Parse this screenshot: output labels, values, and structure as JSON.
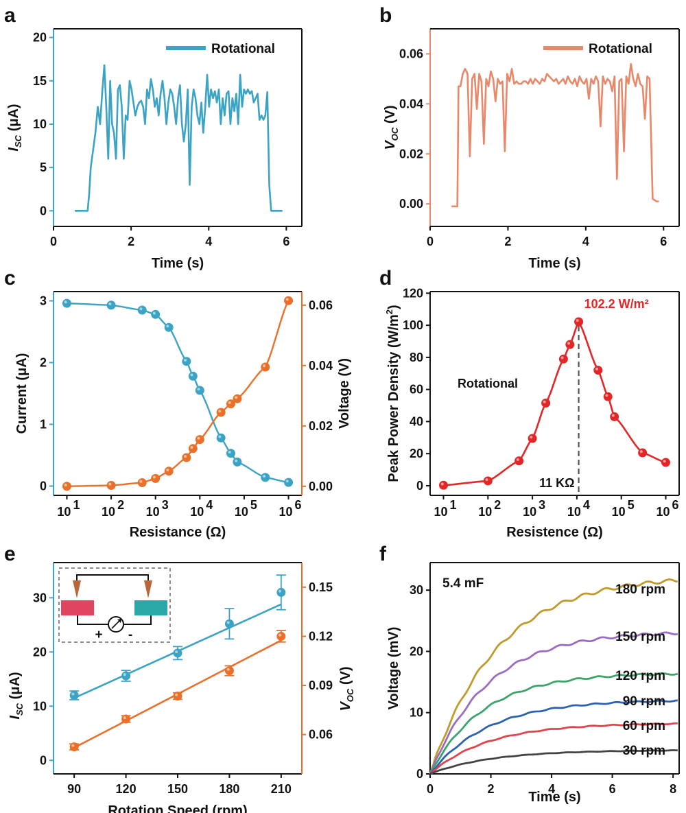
{
  "colors": {
    "blue": "#3ba3c3",
    "salmon": "#e8886a",
    "orange": "#e8702a",
    "red": "#e32626",
    "black": "#111111",
    "gray": "#555555"
  },
  "panels": [
    {
      "letter": "a",
      "chart_data": {
        "type": "line",
        "xlabel": "Time (s)",
        "ylabel_main": "I",
        "ylabel_sub": "SC",
        "ylabel_unit": " (μA)",
        "xlim": [
          0,
          6.4
        ],
        "ylim": [
          -1.8,
          21
        ],
        "xticks": [
          0,
          2,
          4,
          6
        ],
        "yticks": [
          0,
          5,
          10,
          15,
          20
        ],
        "legend": "top-right",
        "series": [
          {
            "name": "Rotational",
            "color": "#3ba3c3",
            "x": [
              0.55,
              0.88,
              0.92,
              0.96,
              1.02,
              1.08,
              1.14,
              1.2,
              1.26,
              1.31,
              1.36,
              1.41,
              1.46,
              1.51,
              1.56,
              1.61,
              1.66,
              1.71,
              1.76,
              1.81,
              1.86,
              1.91,
              1.96,
              2.01,
              2.06,
              2.11,
              2.16,
              2.21,
              2.26,
              2.31,
              2.36,
              2.41,
              2.46,
              2.51,
              2.56,
              2.61,
              2.66,
              2.71,
              2.76,
              2.81,
              2.86,
              2.91,
              2.96,
              3.01,
              3.06,
              3.11,
              3.16,
              3.21,
              3.26,
              3.31,
              3.36,
              3.41,
              3.46,
              3.51,
              3.56,
              3.61,
              3.66,
              3.71,
              3.76,
              3.81,
              3.86,
              3.91,
              3.96,
              4.01,
              4.06,
              4.11,
              4.16,
              4.21,
              4.26,
              4.31,
              4.36,
              4.41,
              4.46,
              4.51,
              4.56,
              4.61,
              4.66,
              4.71,
              4.76,
              4.81,
              4.86,
              4.91,
              4.96,
              5.01,
              5.06,
              5.11,
              5.16,
              5.21,
              5.26,
              5.31,
              5.36,
              5.41,
              5.46,
              5.51,
              5.56,
              5.61,
              5.66,
              5.71,
              5.76,
              5.9
            ],
            "y": [
              0,
              0,
              2,
              5,
              7,
              9,
              12,
              10,
              14,
              16.8,
              12,
              6,
              15,
              10,
              9,
              6,
              14,
              14.5,
              12,
              6,
              11,
              10.5,
              15,
              14,
              12.5,
              11,
              12,
              12.5,
              12.7,
              12,
              10,
              14,
              13,
              15.2,
              14,
              12,
              13,
              11,
              13.5,
              15,
              13,
              10,
              12.5,
              14,
              13.5,
              12,
              10,
              13,
              14.5,
              10,
              8,
              10,
              14,
              3,
              12,
              14,
              13,
              11,
              10,
              12.5,
              9,
              12,
              15.7,
              12,
              14,
              13,
              13.8,
              12.5,
              14,
              10,
              13,
              11,
              13.5,
              13.8,
              10,
              13,
              11.5,
              13.5,
              10,
              15.7,
              12,
              14,
              13.5,
              14,
              13.5,
              13.8,
              12.5,
              13,
              13.5,
              10.5,
              11,
              10.5,
              11,
              13.7,
              3,
              0,
              0,
              0,
              0,
              0
            ]
          }
        ]
      }
    },
    {
      "letter": "b",
      "chart_data": {
        "type": "line",
        "xlabel": "Time (s)",
        "ylabel_main": "V",
        "ylabel_sub": "OC",
        "ylabel_unit": " (V)",
        "xlim": [
          0,
          6.4
        ],
        "ylim": [
          -0.009,
          0.07
        ],
        "xticks": [
          0,
          2,
          4,
          6
        ],
        "yticks": [
          0.0,
          0.02,
          0.04,
          0.06
        ],
        "legend": "top-right",
        "series": [
          {
            "name": "Rotational",
            "color": "#e8886a",
            "x": [
              0.55,
              0.7,
              0.73,
              0.78,
              0.84,
              0.9,
              0.96,
              1.02,
              1.08,
              1.14,
              1.2,
              1.26,
              1.32,
              1.38,
              1.44,
              1.5,
              1.56,
              1.62,
              1.68,
              1.74,
              1.8,
              1.86,
              1.92,
              1.98,
              2.04,
              2.1,
              2.16,
              2.22,
              2.28,
              2.34,
              2.4,
              2.46,
              2.52,
              2.58,
              2.64,
              2.7,
              2.76,
              2.82,
              2.88,
              2.94,
              3.0,
              3.06,
              3.12,
              3.18,
              3.24,
              3.3,
              3.36,
              3.42,
              3.48,
              3.54,
              3.6,
              3.66,
              3.72,
              3.78,
              3.84,
              3.9,
              3.96,
              4.02,
              4.08,
              4.14,
              4.2,
              4.26,
              4.32,
              4.38,
              4.44,
              4.5,
              4.56,
              4.62,
              4.68,
              4.74,
              4.8,
              4.86,
              4.92,
              4.98,
              5.04,
              5.1,
              5.16,
              5.22,
              5.28,
              5.34,
              5.4,
              5.46,
              5.52,
              5.58,
              5.64,
              5.72,
              5.82,
              5.88
            ],
            "y": [
              -0.001,
              -0.001,
              0.047,
              0.047,
              0.052,
              0.054,
              0.052,
              0.019,
              0.05,
              0.052,
              0.038,
              0.052,
              0.049,
              0.024,
              0.05,
              0.047,
              0.053,
              0.05,
              0.041,
              0.05,
              0.048,
              0.049,
              0.021,
              0.052,
              0.049,
              0.054,
              0.048,
              0.049,
              0.048,
              0.048,
              0.049,
              0.049,
              0.048,
              0.05,
              0.048,
              0.05,
              0.049,
              0.048,
              0.05,
              0.049,
              0.052,
              0.051,
              0.05,
              0.049,
              0.05,
              0.048,
              0.049,
              0.05,
              0.048,
              0.051,
              0.049,
              0.048,
              0.05,
              0.047,
              0.051,
              0.049,
              0.048,
              0.05,
              0.042,
              0.05,
              0.048,
              0.051,
              0.049,
              0.031,
              0.051,
              0.048,
              0.05,
              0.049,
              0.045,
              0.051,
              0.01,
              0.049,
              0.05,
              0.021,
              0.051,
              0.048,
              0.056,
              0.05,
              0.047,
              0.052,
              0.048,
              0.047,
              0.034,
              0.051,
              0.05,
              0.002,
              0.001,
              0.001
            ]
          }
        ]
      }
    },
    {
      "letter": "c",
      "chart_data": {
        "type": "line",
        "xscale": "log",
        "xlabel": "Resistance (Ω)",
        "ylabel": "Current (μA)",
        "y2label": "Voltage (V)",
        "xlim": [
          5,
          2000000
        ],
        "ylim": [
          -0.15,
          3.15
        ],
        "y2lim": [
          -0.003,
          0.0645
        ],
        "xticks": [
          10,
          100,
          1000,
          10000,
          100000,
          1000000
        ],
        "xtick_labels": [
          "10",
          "10",
          "10",
          "10",
          "10",
          "10"
        ],
        "xtick_exps": [
          "1",
          "2",
          "3",
          "4",
          "5",
          "6"
        ],
        "yticks": [
          0,
          1,
          2,
          3
        ],
        "y2ticks": [
          0.0,
          0.02,
          0.04,
          0.06
        ],
        "series": [
          {
            "axis": "left",
            "color": "#3ba3c3",
            "x": [
              10,
              100,
              500,
              1000,
              2000,
              5000,
              7000,
              10000,
              30000,
              50000,
              70000,
              300000,
              1000000
            ],
            "y": [
              2.96,
              2.93,
              2.85,
              2.78,
              2.57,
              2.02,
              1.78,
              1.55,
              0.78,
              0.53,
              0.39,
              0.14,
              0.06
            ]
          },
          {
            "axis": "right",
            "color": "#e8702a",
            "x": [
              10,
              100,
              500,
              1000,
              2000,
              5000,
              7000,
              10000,
              30000,
              50000,
              70000,
              300000,
              1000000
            ],
            "y": [
              0.0,
              0.0003,
              0.0012,
              0.0026,
              0.005,
              0.0095,
              0.0125,
              0.0155,
              0.0245,
              0.0273,
              0.029,
              0.0395,
              0.0615
            ]
          }
        ]
      }
    },
    {
      "letter": "d",
      "chart_data": {
        "type": "line",
        "xscale": "log",
        "xlabel": "Resistence (Ω)",
        "ylabel": "Peak Power Density (W/m",
        "ylabel_sup": "2",
        "ylabel_end": ")",
        "xlim": [
          5,
          2000000
        ],
        "ylim": [
          -6,
          121
        ],
        "xticks": [
          10,
          100,
          1000,
          10000,
          100000,
          1000000
        ],
        "xtick_labels": [
          "10",
          "10",
          "10",
          "10",
          "10",
          "10"
        ],
        "xtick_exps": [
          "1",
          "2",
          "3",
          "4",
          "5",
          "6"
        ],
        "yticks": [
          0,
          20,
          40,
          60,
          80,
          100,
          120
        ],
        "annotations": {
          "peak": "102.2 W/m²",
          "resistance": "11 KΩ",
          "mode": "Rotational"
        },
        "series": [
          {
            "color": "#e32626",
            "x": [
              10,
              100,
              500,
              1000,
              2000,
              5000,
              7000,
              11000,
              30000,
              50000,
              70000,
              300000,
              1000000
            ],
            "y": [
              0.3,
              3.0,
              15.5,
              29.5,
              51.5,
              79,
              88,
              102.2,
              72,
              55.5,
              43,
              20.5,
              14.5
            ]
          }
        ]
      }
    },
    {
      "letter": "e",
      "chart_data": {
        "type": "scatter",
        "xlabel": "Rotation Speed (rpm)",
        "ylabel_main": "I",
        "ylabel_sub": "SC",
        "ylabel_unit": " (μA)",
        "y2label_main": "V",
        "y2label_sub": "OC",
        "y2label_unit": " (V)",
        "xlim": [
          78,
          222
        ],
        "ylim": [
          -2.5,
          36.5
        ],
        "y2lim": [
          0.036,
          0.165
        ],
        "xticks": [
          90,
          120,
          150,
          180,
          210
        ],
        "yticks": [
          0,
          10,
          20,
          30
        ],
        "y2ticks": [
          0.06,
          0.09,
          0.12,
          0.15
        ],
        "inset": {
          "plus": "+",
          "minus": "-"
        },
        "series": [
          {
            "axis": "left",
            "color": "#3ba3c3",
            "x": [
              90,
              120,
              150,
              180,
              210
            ],
            "y": [
              12,
              15.6,
              19.8,
              25.2,
              31
            ],
            "err": [
              0.8,
              1.0,
              1.2,
              2.8,
              3.2
            ],
            "fit": [
              11.5,
              28.8
            ]
          },
          {
            "axis": "right",
            "color": "#e8702a",
            "x": [
              90,
              120,
              150,
              180,
              210
            ],
            "y": [
              0.0525,
              0.0695,
              0.0835,
              0.099,
              0.12
            ],
            "err": [
              0.0018,
              0.002,
              0.002,
              0.003,
              0.0035
            ],
            "fit": [
              0.052,
              0.1175
            ]
          }
        ]
      }
    },
    {
      "letter": "f",
      "chart_data": {
        "type": "line",
        "xlabel": "Time (s)",
        "ylabel": "Voltage (mV)",
        "xlim": [
          0,
          8.2
        ],
        "ylim": [
          0,
          34.5
        ],
        "xticks": [
          0,
          2,
          4,
          6,
          8
        ],
        "yticks": [
          0,
          10,
          20,
          30
        ],
        "annotation": "5.4 mF",
        "series": [
          {
            "name": "180 rpm",
            "color": "#c09a2c",
            "final": 32.4,
            "tau": 2.2
          },
          {
            "name": "150 rpm",
            "color": "#9a6dc2",
            "final": 23.3,
            "tau": 1.9
          },
          {
            "name": "120 rpm",
            "color": "#3aa46a",
            "final": 16.5,
            "tau": 1.75
          },
          {
            "name": "90 rpm",
            "color": "#2d62b0",
            "final": 12.1,
            "tau": 1.9
          },
          {
            "name": "60 rpm",
            "color": "#e2434c",
            "final": 8.3,
            "tau": 1.9
          },
          {
            "name": "30 rpm",
            "color": "#444444",
            "final": 3.9,
            "tau": 2.0
          }
        ]
      }
    }
  ]
}
